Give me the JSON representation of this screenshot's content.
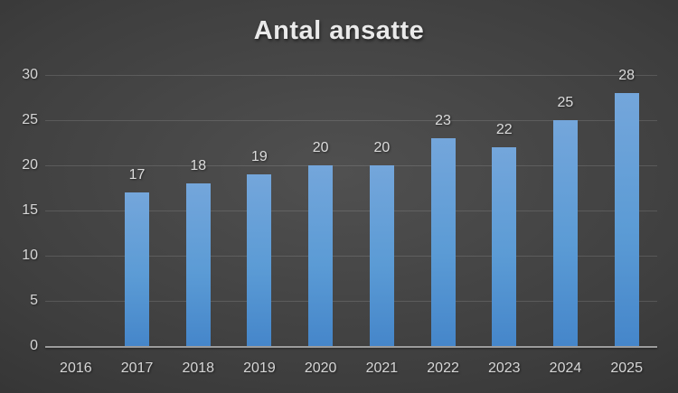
{
  "title": "Antal ansatte",
  "chart_data": {
    "type": "bar",
    "title": "Antal ansatte",
    "categories": [
      "2016",
      "2017",
      "2018",
      "2019",
      "2020",
      "2021",
      "2022",
      "2023",
      "2024",
      "2025"
    ],
    "values": [
      null,
      17,
      18,
      19,
      20,
      20,
      23,
      22,
      25,
      28
    ],
    "xlabel": "",
    "ylabel": "",
    "ylim": [
      0,
      30
    ],
    "ytick_step": 5,
    "grid": true,
    "legend_position": "none",
    "data_labels": true,
    "colors": {
      "bar_gradient_top": "#74a6db",
      "bar_fill": "#5b9bd5",
      "bar_gradient_bottom": "#4586ca",
      "background_center": "#505050",
      "background_edge": "#262626",
      "gridline": "rgba(255,255,255,0.13)",
      "axis_line": "#9c9c9c",
      "tick_label_text": "#d6d6d6",
      "value_label_text": "#dcdcdc",
      "title_text": "#eaeaea"
    }
  }
}
